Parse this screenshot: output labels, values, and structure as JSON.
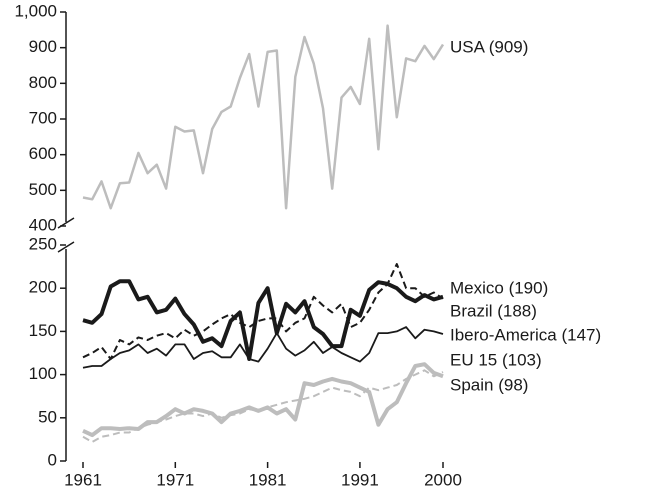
{
  "chart_data": [
    {
      "type": "line",
      "x": [
        1961,
        1962,
        1963,
        1964,
        1965,
        1966,
        1967,
        1968,
        1969,
        1970,
        1971,
        1972,
        1973,
        1974,
        1975,
        1976,
        1977,
        1978,
        1979,
        1980,
        1981,
        1982,
        1983,
        1984,
        1985,
        1986,
        1987,
        1988,
        1989,
        1990,
        1991,
        1992,
        1993,
        1994,
        1995,
        1996,
        1997,
        1998,
        1999,
        2000
      ],
      "xlim": [
        1961,
        2000
      ],
      "ylim": [
        400,
        1000
      ],
      "yticks": [
        400,
        500,
        600,
        700,
        800,
        900,
        {
          "value": 1000,
          "label": "1,000"
        }
      ],
      "series": [
        {
          "name": "USA (909)",
          "color": "#bdbdbd",
          "linewidth": 2.5,
          "dash": false,
          "values": [
            480,
            475,
            525,
            450,
            520,
            522,
            605,
            548,
            572,
            505,
            678,
            665,
            668,
            548,
            672,
            720,
            735,
            815,
            882,
            735,
            888,
            892,
            450,
            818,
            930,
            855,
            730,
            505,
            760,
            790,
            742,
            925,
            615,
            962,
            705,
            870,
            862,
            905,
            868,
            909
          ]
        }
      ]
    },
    {
      "type": "line",
      "x": [
        1961,
        1962,
        1963,
        1964,
        1965,
        1966,
        1967,
        1968,
        1969,
        1970,
        1971,
        1972,
        1973,
        1974,
        1975,
        1976,
        1977,
        1978,
        1979,
        1980,
        1981,
        1982,
        1983,
        1984,
        1985,
        1986,
        1987,
        1988,
        1989,
        1990,
        1991,
        1992,
        1993,
        1994,
        1995,
        1996,
        1997,
        1998,
        1999,
        2000
      ],
      "xlim": [
        1961,
        2000
      ],
      "xticks": [
        1961,
        1971,
        1981,
        1991,
        2000
      ],
      "ylim": [
        0,
        250
      ],
      "yticks": [
        0,
        50,
        100,
        150,
        200,
        250
      ],
      "series": [
        {
          "name": "Mexico (190)",
          "color": "#1a1a1a",
          "linewidth": 4,
          "dash": false,
          "values": [
            163,
            160,
            170,
            202,
            208,
            208,
            187,
            190,
            172,
            175,
            188,
            170,
            158,
            138,
            142,
            133,
            162,
            172,
            118,
            183,
            200,
            148,
            182,
            172,
            185,
            155,
            147,
            133,
            133,
            175,
            168,
            198,
            207,
            205,
            200,
            190,
            185,
            192,
            187,
            190
          ]
        },
        {
          "name": "Brazil (188)",
          "color": "#1a1a1a",
          "linewidth": 2,
          "dash": true,
          "values": [
            120,
            125,
            132,
            118,
            140,
            135,
            143,
            140,
            145,
            148,
            142,
            152,
            145,
            150,
            158,
            165,
            170,
            160,
            155,
            162,
            165,
            165,
            150,
            160,
            165,
            190,
            180,
            172,
            182,
            155,
            160,
            175,
            195,
            205,
            228,
            200,
            200,
            190,
            195,
            188
          ]
        },
        {
          "name": "Ibero-America (147)",
          "color": "#1a1a1a",
          "linewidth": 1.8,
          "dash": false,
          "values": [
            108,
            110,
            110,
            118,
            125,
            128,
            135,
            125,
            130,
            122,
            135,
            135,
            118,
            125,
            127,
            120,
            120,
            135,
            118,
            115,
            130,
            148,
            130,
            122,
            128,
            138,
            125,
            132,
            125,
            120,
            115,
            125,
            148,
            148,
            150,
            155,
            142,
            152,
            150,
            147
          ]
        },
        {
          "name": "EU 15 (103)",
          "color": "#bdbdbd",
          "linewidth": 2,
          "dash": true,
          "values": [
            28,
            22,
            28,
            30,
            33,
            33,
            38,
            42,
            45,
            48,
            52,
            55,
            55,
            52,
            55,
            50,
            53,
            55,
            60,
            58,
            62,
            65,
            68,
            70,
            72,
            75,
            80,
            85,
            82,
            80,
            75,
            85,
            82,
            85,
            88,
            95,
            100,
            105,
            98,
            103
          ]
        },
        {
          "name": "Spain (98)",
          "color": "#bdbdbd",
          "linewidth": 4,
          "dash": false,
          "values": [
            35,
            30,
            38,
            38,
            37,
            38,
            37,
            45,
            45,
            52,
            60,
            55,
            60,
            58,
            55,
            45,
            55,
            58,
            62,
            58,
            62,
            55,
            60,
            48,
            90,
            88,
            92,
            95,
            92,
            90,
            85,
            80,
            42,
            60,
            68,
            90,
            110,
            112,
            102,
            98
          ]
        }
      ]
    }
  ]
}
